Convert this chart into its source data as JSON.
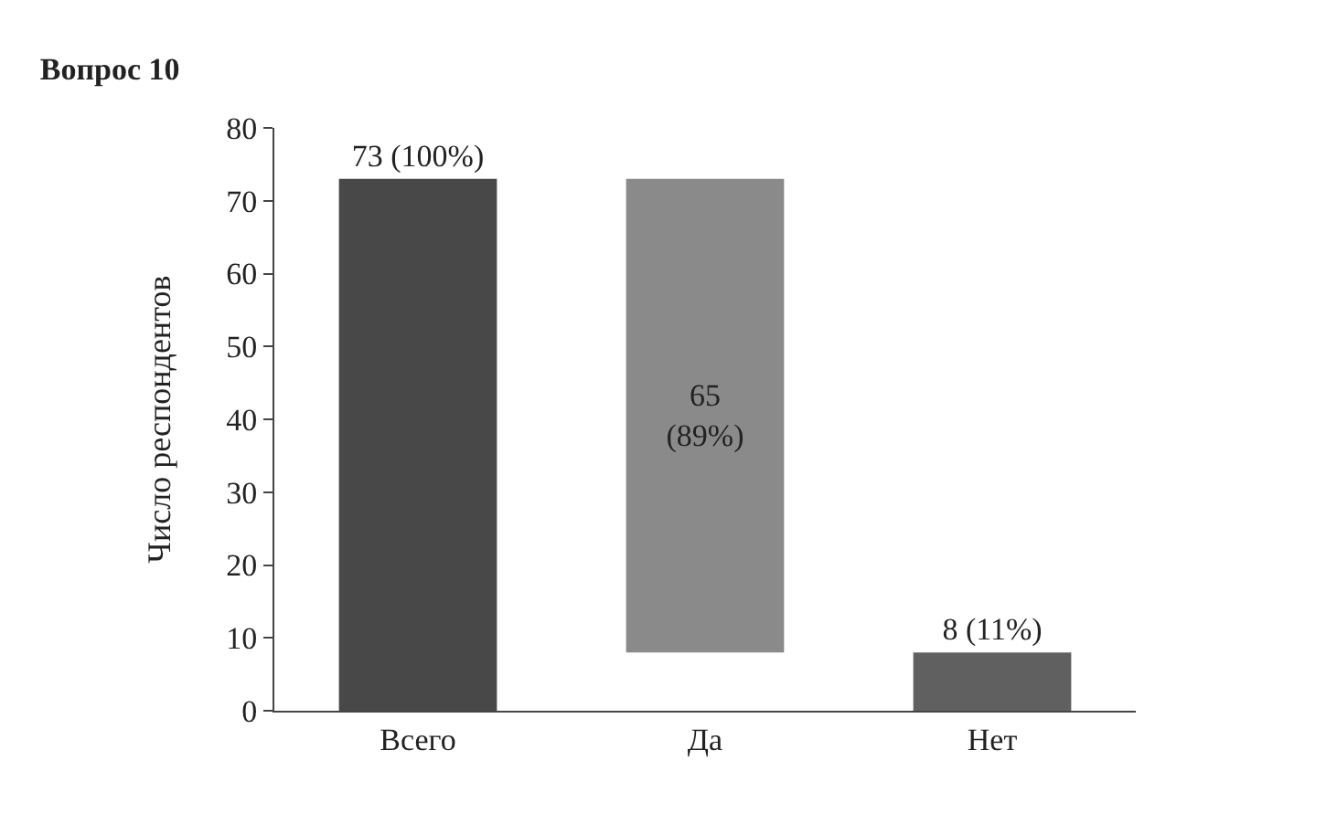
{
  "chart_data": {
    "type": "bar",
    "title": "Вопрос 10",
    "ylabel": "Число респондентов",
    "categories": [
      "Всего",
      "Да",
      "Нет"
    ],
    "values": [
      73,
      65,
      8
    ],
    "base": [
      0,
      8,
      0
    ],
    "colors": [
      "#484848",
      "#8a8a8a",
      "#606060"
    ],
    "value_labels": [
      "73 (100%)",
      "65\n(89%)",
      "8 (11%)"
    ],
    "ylim": [
      0,
      80
    ],
    "yticks": [
      0,
      10,
      20,
      30,
      40,
      50,
      60,
      70,
      80
    ]
  }
}
